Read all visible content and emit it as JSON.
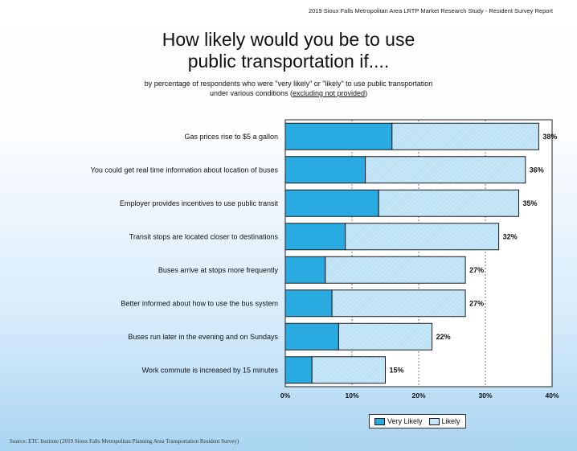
{
  "header": {
    "report": "2019 Sioux Falls Metropolitan Area LRTP Market Research Study - Resident Survey Report"
  },
  "title_line1": "How likely would you be to use",
  "title_line2": "public transportation if....",
  "subtitle_line1": "by percentage of respondents who were \"very likely\" or \"likely\" to use public transportation",
  "subtitle_line2_pre": "under various conditions (",
  "subtitle_line2_u": "excluding not provided",
  "subtitle_line2_post": ")",
  "legend": {
    "very_likely": "Very Likely",
    "likely": "Likely"
  },
  "source": "Source:  ETC Institute (2019 Sioux Falls Metropolitan Planning Area Transportation Resident Survey)",
  "colors": {
    "very_likely": "#29abe2",
    "likely": "#c5e6f7"
  },
  "chart_data": {
    "type": "bar",
    "orientation": "horizontal",
    "stacked": true,
    "categories": [
      "Gas prices rise to $5 a gallon",
      "You could get real time information about location of buses",
      "Employer provides incentives to use public transit",
      "Transit stops are located closer to destinations",
      "Buses arrive at stops more frequently",
      "Better informed about how to use the bus system",
      "Buses run later in the evening and on Sundays",
      "Work commute is increased by 15 minutes"
    ],
    "series": [
      {
        "name": "Very Likely",
        "values": [
          16,
          12,
          14,
          9,
          6,
          7,
          8,
          4
        ]
      },
      {
        "name": "Likely",
        "values": [
          22,
          24,
          21,
          23,
          21,
          20,
          14,
          11
        ]
      }
    ],
    "totals": [
      38,
      36,
      35,
      32,
      27,
      27,
      22,
      15
    ],
    "value_labels": [
      "38%",
      "36%",
      "35%",
      "32%",
      "27%",
      "27%",
      "22%",
      "15%"
    ],
    "xlim": [
      0,
      40
    ],
    "xticks": [
      0,
      10,
      20,
      30,
      40
    ],
    "xtick_labels": [
      "0%",
      "10%",
      "20%",
      "30%",
      "40%"
    ],
    "grid": "vertical dotted",
    "legend_position": "bottom-right"
  }
}
